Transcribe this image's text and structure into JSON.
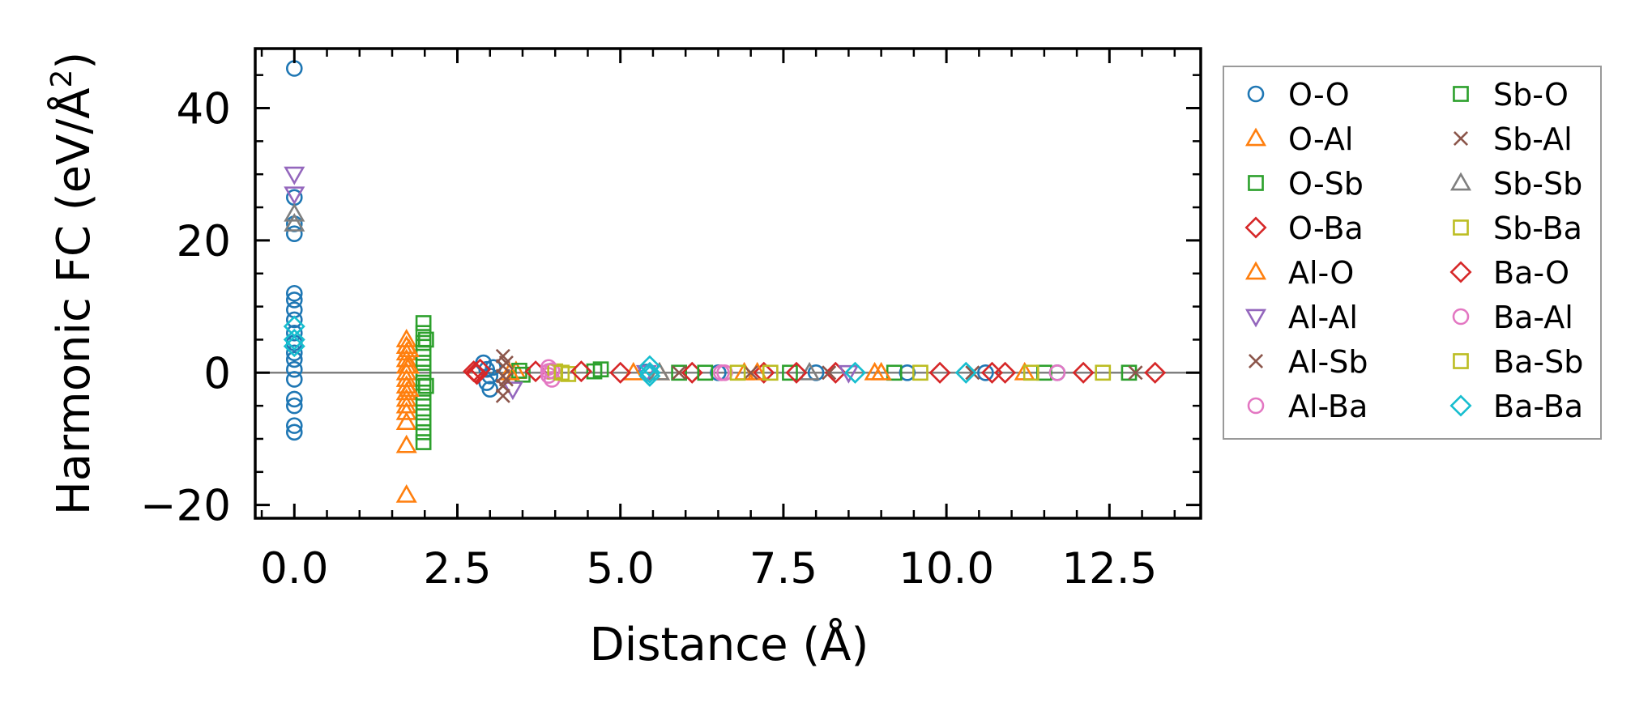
{
  "chart_data": {
    "type": "scatter",
    "title": "",
    "xlabel": "Distance (Å)",
    "ylabel": "Harmonic FC (eV/Å²)",
    "ylabel_main": "Harmonic FC (eV/Å",
    "ylabel_sup": "2",
    "ylabel_close": ")",
    "xlim": [
      -0.6,
      13.9
    ],
    "ylim": [
      -22,
      49
    ],
    "xticks": [
      0.0,
      2.5,
      5.0,
      7.5,
      10.0,
      12.5
    ],
    "xtick_labels": [
      "0.0",
      "2.5",
      "5.0",
      "7.5",
      "10.0",
      "12.5"
    ],
    "yticks": [
      -20,
      0,
      20,
      40
    ],
    "ytick_labels": [
      "−20",
      "0",
      "20",
      "40"
    ],
    "zero_line": true,
    "grid": false,
    "legend_position": "outside-right",
    "series": [
      {
        "name": "O-O",
        "marker": "circle",
        "color": "#1f77b4",
        "points": [
          [
            0,
            46
          ],
          [
            0,
            26.5
          ],
          [
            0,
            22.5
          ],
          [
            0,
            21
          ],
          [
            0,
            12
          ],
          [
            0,
            11
          ],
          [
            0,
            9.5
          ],
          [
            0,
            8
          ],
          [
            0,
            6
          ],
          [
            0,
            4.5
          ],
          [
            0,
            3
          ],
          [
            0,
            2
          ],
          [
            0,
            0.5
          ],
          [
            0,
            -1
          ],
          [
            0,
            -4
          ],
          [
            0,
            -5
          ],
          [
            0,
            -8
          ],
          [
            0,
            -9
          ],
          [
            2.9,
            1.5
          ],
          [
            2.95,
            0.5
          ],
          [
            3.0,
            -0.5
          ],
          [
            2.95,
            -1.5
          ],
          [
            3.0,
            -2.5
          ],
          [
            3.05,
            0.8
          ],
          [
            5.4,
            0.1
          ],
          [
            6.5,
            0
          ],
          [
            8.0,
            0
          ],
          [
            9.4,
            0
          ],
          [
            10.6,
            0
          ],
          [
            11.7,
            0
          ]
        ]
      },
      {
        "name": "O-Al",
        "marker": "triangle-up",
        "color": "#ff7f0e",
        "points": [
          [
            1.72,
            5
          ],
          [
            1.72,
            4
          ],
          [
            1.72,
            3
          ],
          [
            1.72,
            2
          ],
          [
            1.72,
            1
          ],
          [
            1.72,
            0
          ],
          [
            1.72,
            -1
          ],
          [
            1.72,
            -2
          ],
          [
            1.72,
            -3
          ],
          [
            1.72,
            -4
          ],
          [
            1.72,
            -5
          ],
          [
            1.72,
            -6
          ],
          [
            1.72,
            -7.5
          ],
          [
            1.72,
            -11
          ],
          [
            1.72,
            -18.5
          ],
          [
            3.4,
            0.2
          ],
          [
            5.2,
            0
          ],
          [
            6.9,
            0
          ],
          [
            8.9,
            0
          ],
          [
            11.2,
            0
          ]
        ]
      },
      {
        "name": "O-Sb",
        "marker": "square",
        "color": "#2ca02c",
        "points": [
          [
            1.98,
            7.5
          ],
          [
            1.98,
            6
          ],
          [
            1.98,
            4.5
          ],
          [
            1.98,
            3
          ],
          [
            1.98,
            1.5
          ],
          [
            1.98,
            0
          ],
          [
            1.98,
            -1.5
          ],
          [
            1.98,
            -3
          ],
          [
            1.98,
            -4.5
          ],
          [
            1.98,
            -6
          ],
          [
            1.98,
            -7.5
          ],
          [
            1.98,
            -9
          ],
          [
            1.98,
            -10.5
          ],
          [
            3.45,
            0.3
          ],
          [
            3.5,
            -0.3
          ],
          [
            4.6,
            0.2
          ],
          [
            5.9,
            0
          ],
          [
            7.6,
            0
          ],
          [
            9.2,
            0
          ],
          [
            11.5,
            0
          ],
          [
            12.8,
            0
          ]
        ]
      },
      {
        "name": "O-Ba",
        "marker": "diamond",
        "color": "#d62728",
        "points": [
          [
            2.75,
            0.2
          ],
          [
            2.8,
            -0.2
          ],
          [
            2.85,
            0.5
          ],
          [
            3.7,
            0.2
          ],
          [
            5.0,
            0
          ],
          [
            6.1,
            0
          ],
          [
            7.2,
            0
          ],
          [
            8.3,
            0
          ],
          [
            9.9,
            0
          ],
          [
            10.7,
            0
          ],
          [
            12.1,
            0
          ],
          [
            13.2,
            0
          ]
        ]
      },
      {
        "name": "Al-O",
        "marker": "triangle-up",
        "color": "#ff7f0e",
        "points": [
          [
            1.76,
            3.5
          ],
          [
            1.76,
            1
          ],
          [
            1.76,
            -2.5
          ],
          [
            3.3,
            0
          ],
          [
            5.6,
            0
          ],
          [
            7.1,
            0
          ],
          [
            9.0,
            0
          ]
        ]
      },
      {
        "name": "Al-Al",
        "marker": "triangle-down",
        "color": "#9467bd",
        "points": [
          [
            0,
            30
          ],
          [
            0,
            27
          ],
          [
            3.35,
            -2.5
          ],
          [
            5.4,
            0
          ],
          [
            8.5,
            0
          ]
        ]
      },
      {
        "name": "Al-Sb",
        "marker": "x",
        "color": "#8c564b",
        "points": [
          [
            3.2,
            2.5
          ],
          [
            3.2,
            1
          ],
          [
            3.2,
            -0.5
          ],
          [
            3.2,
            -2
          ],
          [
            3.2,
            -3.5
          ],
          [
            5.9,
            0
          ],
          [
            8.2,
            0
          ],
          [
            10.4,
            0
          ]
        ]
      },
      {
        "name": "Al-Ba",
        "marker": "circle",
        "color": "#e377c2",
        "points": [
          [
            3.9,
            0.8
          ],
          [
            3.9,
            0.2
          ],
          [
            3.9,
            -0.4
          ],
          [
            3.95,
            -1.0
          ],
          [
            6.6,
            0
          ],
          [
            11.7,
            0
          ]
        ]
      },
      {
        "name": "Sb-O",
        "marker": "square",
        "color": "#2ca02c",
        "points": [
          [
            2.02,
            -2
          ],
          [
            2.02,
            5
          ],
          [
            4.7,
            0.5
          ],
          [
            6.3,
            0
          ]
        ]
      },
      {
        "name": "Sb-Al",
        "marker": "x",
        "color": "#8c564b",
        "points": [
          [
            3.25,
            1.5
          ],
          [
            3.25,
            -1
          ],
          [
            7.0,
            0
          ],
          [
            12.9,
            0
          ]
        ]
      },
      {
        "name": "Sb-Sb",
        "marker": "triangle-up",
        "color": "#7f7f7f",
        "points": [
          [
            0,
            24
          ],
          [
            0,
            22.5
          ],
          [
            5.6,
            0
          ],
          [
            7.9,
            0
          ]
        ]
      },
      {
        "name": "Sb-Ba",
        "marker": "square",
        "color": "#bcbd22",
        "points": [
          [
            4.0,
            0.2
          ],
          [
            4.2,
            -0.2
          ],
          [
            6.8,
            0
          ],
          [
            9.6,
            0
          ]
        ]
      },
      {
        "name": "Ba-O",
        "marker": "diamond",
        "color": "#d62728",
        "points": [
          [
            2.78,
            0
          ],
          [
            4.4,
            0.2
          ],
          [
            7.7,
            0
          ],
          [
            10.9,
            0
          ]
        ]
      },
      {
        "name": "Ba-Al",
        "marker": "circle",
        "color": "#e377c2",
        "points": [
          [
            3.95,
            0.3
          ],
          [
            6.55,
            0
          ]
        ]
      },
      {
        "name": "Ba-Sb",
        "marker": "square",
        "color": "#bcbd22",
        "points": [
          [
            4.1,
            0
          ],
          [
            7.3,
            0
          ],
          [
            11.3,
            0
          ],
          [
            12.4,
            0
          ]
        ]
      },
      {
        "name": "Ba-Ba",
        "marker": "diamond",
        "color": "#17becf",
        "points": [
          [
            0,
            7
          ],
          [
            0,
            5
          ],
          [
            0,
            4
          ],
          [
            5.45,
            1
          ],
          [
            5.45,
            0
          ],
          [
            5.45,
            -0.5
          ],
          [
            8.6,
            0
          ],
          [
            10.3,
            0
          ]
        ]
      }
    ]
  }
}
